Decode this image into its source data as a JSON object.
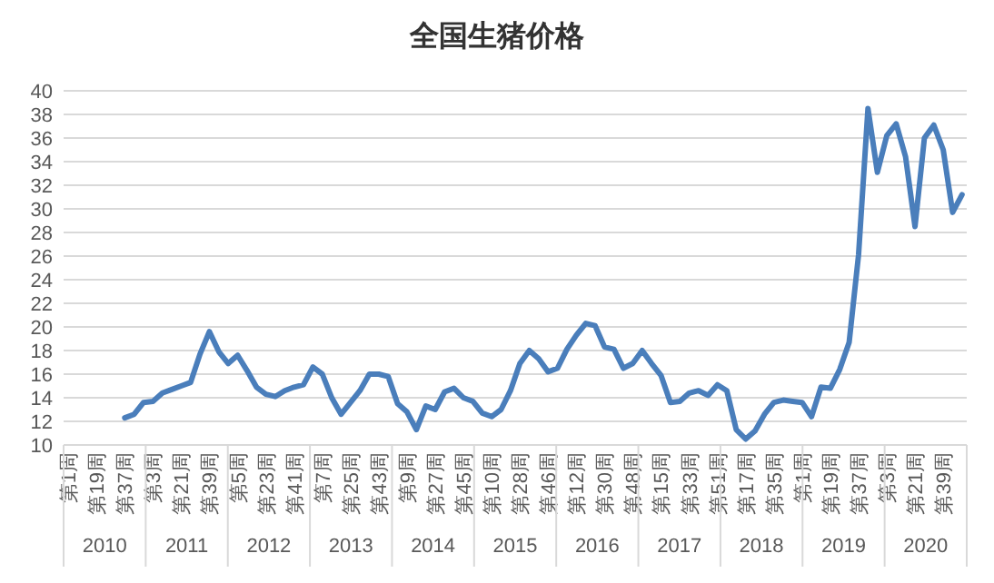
{
  "chart_data": {
    "type": "line",
    "title": "全国生猪价格",
    "categories": [
      "第1周",
      null,
      null,
      "第19周",
      null,
      null,
      "第37周",
      null,
      null,
      "第3周",
      null,
      null,
      "第21周",
      null,
      null,
      "第39周",
      null,
      null,
      "第5周",
      null,
      null,
      "第23周",
      null,
      null,
      "第41周",
      null,
      null,
      "第7周",
      null,
      null,
      "第25周",
      null,
      null,
      "第43周",
      null,
      null,
      "第9周",
      null,
      null,
      "第27周",
      null,
      null,
      "第45周",
      null,
      null,
      "第10周",
      null,
      null,
      "第28周",
      null,
      null,
      "第46周",
      null,
      null,
      "第12周",
      null,
      null,
      "第30周",
      null,
      null,
      "第48周",
      null,
      null,
      "第15周",
      null,
      null,
      "第33周",
      null,
      null,
      "第51周",
      null,
      null,
      "第17周",
      null,
      null,
      "第35周",
      null,
      null,
      "第1周",
      null,
      null,
      "第19周",
      null,
      null,
      "第37周",
      null,
      null,
      "第3周",
      null,
      null,
      "第21周",
      null,
      null,
      "第39周",
      null,
      null
    ],
    "values": [
      null,
      null,
      null,
      null,
      null,
      null,
      12.3,
      12.6,
      13.6,
      13.7,
      14.4,
      14.7,
      15.0,
      15.3,
      17.7,
      19.6,
      17.9,
      16.9,
      17.6,
      16.3,
      14.9,
      14.3,
      14.1,
      14.6,
      14.9,
      15.1,
      16.6,
      16.0,
      14.0,
      12.6,
      13.6,
      14.6,
      16.0,
      16.0,
      15.8,
      13.5,
      12.8,
      11.3,
      13.3,
      13.0,
      14.5,
      14.8,
      14.0,
      13.7,
      12.7,
      12.4,
      13.0,
      14.6,
      16.9,
      18.0,
      17.3,
      16.2,
      16.5,
      18.1,
      19.3,
      20.3,
      20.1,
      18.3,
      18.1,
      16.5,
      16.9,
      18.0,
      16.9,
      15.9,
      13.6,
      13.7,
      14.4,
      14.6,
      14.2,
      15.1,
      14.6,
      11.3,
      10.5,
      11.2,
      12.6,
      13.6,
      13.8,
      13.7,
      13.6,
      12.4,
      14.9,
      14.8,
      16.4,
      18.7,
      26.1,
      38.5,
      33.1,
      36.2,
      37.2,
      34.4,
      28.5,
      36.0,
      37.1,
      35.0,
      29.7,
      31.2
    ],
    "color": "#4a7ebb",
    "ylim": [
      10,
      40
    ],
    "yticks": [
      10,
      12,
      14,
      16,
      18,
      20,
      22,
      24,
      26,
      28,
      30,
      32,
      34,
      36,
      38,
      40
    ],
    "grid": "y",
    "annotations": [
      "2010",
      "2011",
      "2012",
      "2013",
      "2014",
      "2015",
      "2016",
      "2017",
      "2018",
      "2019",
      "2020"
    ]
  }
}
